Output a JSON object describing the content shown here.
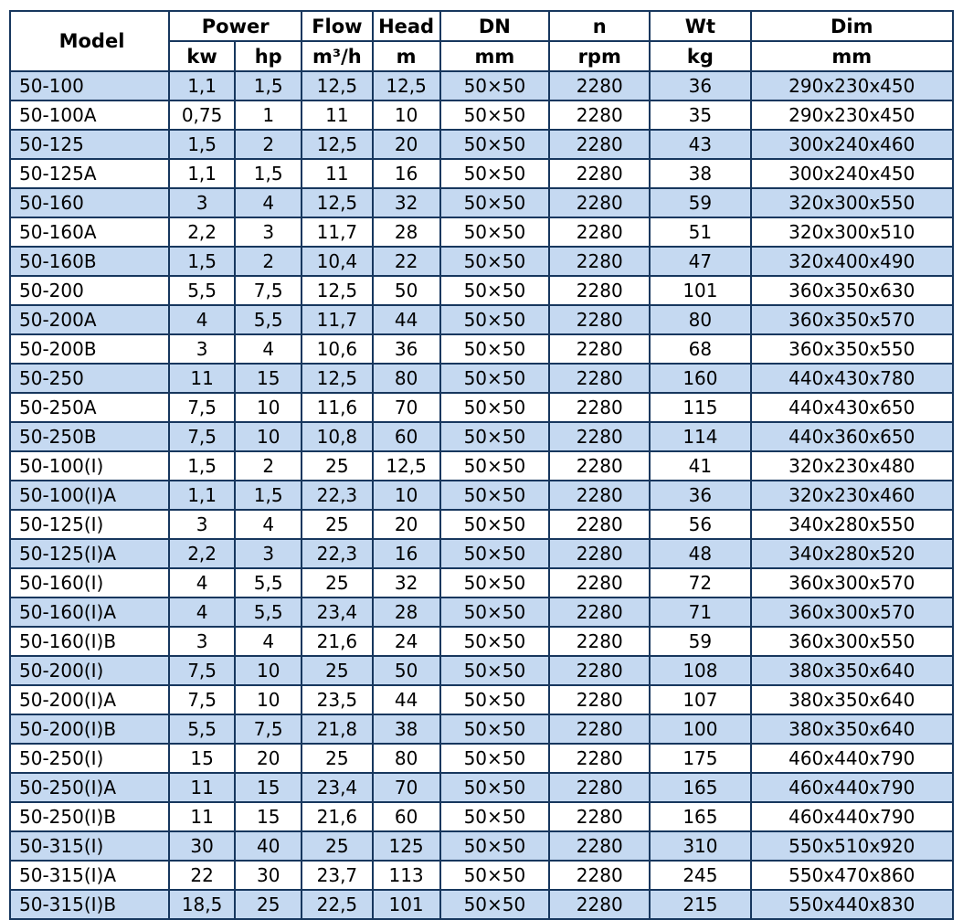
{
  "colors": {
    "border": "#17375e",
    "row_stripe": "#c5d9f1",
    "row_plain": "#ffffff",
    "text": "#000000"
  },
  "table": {
    "header_groups": {
      "model": "Model",
      "power": "Power",
      "flow": "Flow",
      "head": "Head",
      "dn": "DN",
      "n": "n",
      "wt": "Wt",
      "dim": "Dim"
    },
    "header_units": {
      "kw": "kw",
      "hp": "hp",
      "flow": "m³/h",
      "head": "m",
      "dn": "mm",
      "n": "rpm",
      "wt": "kg",
      "dim": "mm"
    },
    "rows": [
      [
        "50-100",
        "1,1",
        "1,5",
        "12,5",
        "12,5",
        "50×50",
        "2280",
        "36",
        "290x230x450"
      ],
      [
        "50-100A",
        "0,75",
        "1",
        "11",
        "10",
        "50×50",
        "2280",
        "35",
        "290x230x450"
      ],
      [
        "50-125",
        "1,5",
        "2",
        "12,5",
        "20",
        "50×50",
        "2280",
        "43",
        "300x240x460"
      ],
      [
        "50-125A",
        "1,1",
        "1,5",
        "11",
        "16",
        "50×50",
        "2280",
        "38",
        "300x240x450"
      ],
      [
        "50-160",
        "3",
        "4",
        "12,5",
        "32",
        "50×50",
        "2280",
        "59",
        "320x300x550"
      ],
      [
        "50-160A",
        "2,2",
        "3",
        "11,7",
        "28",
        "50×50",
        "2280",
        "51",
        "320x300x510"
      ],
      [
        "50-160B",
        "1,5",
        "2",
        "10,4",
        "22",
        "50×50",
        "2280",
        "47",
        "320x400x490"
      ],
      [
        "50-200",
        "5,5",
        "7,5",
        "12,5",
        "50",
        "50×50",
        "2280",
        "101",
        "360x350x630"
      ],
      [
        "50-200A",
        "4",
        "5,5",
        "11,7",
        "44",
        "50×50",
        "2280",
        "80",
        "360x350x570"
      ],
      [
        "50-200B",
        "3",
        "4",
        "10,6",
        "36",
        "50×50",
        "2280",
        "68",
        "360x350x550"
      ],
      [
        "50-250",
        "11",
        "15",
        "12,5",
        "80",
        "50×50",
        "2280",
        "160",
        "440x430x780"
      ],
      [
        "50-250A",
        "7,5",
        "10",
        "11,6",
        "70",
        "50×50",
        "2280",
        "115",
        "440x430x650"
      ],
      [
        "50-250B",
        "7,5",
        "10",
        "10,8",
        "60",
        "50×50",
        "2280",
        "114",
        "440x360x650"
      ],
      [
        "50-100(I)",
        "1,5",
        "2",
        "25",
        "12,5",
        "50×50",
        "2280",
        "41",
        "320x230x480"
      ],
      [
        "50-100(I)A",
        "1,1",
        "1,5",
        "22,3",
        "10",
        "50×50",
        "2280",
        "36",
        "320x230x460"
      ],
      [
        "50-125(I)",
        "3",
        "4",
        "25",
        "20",
        "50×50",
        "2280",
        "56",
        "340x280x550"
      ],
      [
        "50-125(I)A",
        "2,2",
        "3",
        "22,3",
        "16",
        "50×50",
        "2280",
        "48",
        "340x280x520"
      ],
      [
        "50-160(I)",
        "4",
        "5,5",
        "25",
        "32",
        "50×50",
        "2280",
        "72",
        "360x300x570"
      ],
      [
        "50-160(I)A",
        "4",
        "5,5",
        "23,4",
        "28",
        "50×50",
        "2280",
        "71",
        "360x300x570"
      ],
      [
        "50-160(I)B",
        "3",
        "4",
        "21,6",
        "24",
        "50×50",
        "2280",
        "59",
        "360x300x550"
      ],
      [
        "50-200(I)",
        "7,5",
        "10",
        "25",
        "50",
        "50×50",
        "2280",
        "108",
        "380x350x640"
      ],
      [
        "50-200(I)A",
        "7,5",
        "10",
        "23,5",
        "44",
        "50×50",
        "2280",
        "107",
        "380x350x640"
      ],
      [
        "50-200(I)B",
        "5,5",
        "7,5",
        "21,8",
        "38",
        "50×50",
        "2280",
        "100",
        "380x350x640"
      ],
      [
        "50-250(I)",
        "15",
        "20",
        "25",
        "80",
        "50×50",
        "2280",
        "175",
        "460x440x790"
      ],
      [
        "50-250(I)A",
        "11",
        "15",
        "23,4",
        "70",
        "50×50",
        "2280",
        "165",
        "460x440x790"
      ],
      [
        "50-250(I)B",
        "11",
        "15",
        "21,6",
        "60",
        "50×50",
        "2280",
        "165",
        "460x440x790"
      ],
      [
        "50-315(I)",
        "30",
        "40",
        "25",
        "125",
        "50×50",
        "2280",
        "310",
        "550x510x920"
      ],
      [
        "50-315(I)A",
        "22",
        "30",
        "23,7",
        "113",
        "50×50",
        "2280",
        "245",
        "550x470x860"
      ],
      [
        "50-315(I)B",
        "18,5",
        "25",
        "22,5",
        "101",
        "50×50",
        "2280",
        "215",
        "550x440x830"
      ]
    ]
  }
}
